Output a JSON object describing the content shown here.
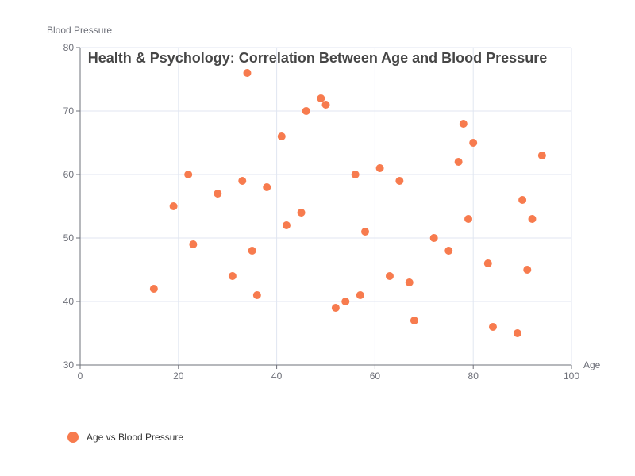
{
  "chart_data": {
    "type": "scatter",
    "title": "Health & Psychology: Correlation Between Age and Blood Pressure",
    "xlabel": "Age",
    "ylabel": "Blood Pressure",
    "xlim": [
      0,
      100
    ],
    "ylim": [
      30,
      80
    ],
    "xticks": [
      0,
      20,
      40,
      60,
      80,
      100
    ],
    "yticks": [
      30,
      40,
      50,
      60,
      70,
      80
    ],
    "grid": true,
    "legend_position": "bottom-left",
    "series": [
      {
        "name": "Age vs Blood Pressure",
        "color": "#f77b4e",
        "points": [
          [
            15,
            42
          ],
          [
            19,
            55
          ],
          [
            22,
            60
          ],
          [
            23,
            49
          ],
          [
            28,
            57
          ],
          [
            31,
            44
          ],
          [
            33,
            59
          ],
          [
            34,
            76
          ],
          [
            35,
            48
          ],
          [
            36,
            41
          ],
          [
            38,
            58
          ],
          [
            41,
            66
          ],
          [
            42,
            52
          ],
          [
            45,
            54
          ],
          [
            46,
            70
          ],
          [
            49,
            72
          ],
          [
            50,
            71
          ],
          [
            52,
            39
          ],
          [
            54,
            40
          ],
          [
            56,
            60
          ],
          [
            57,
            41
          ],
          [
            58,
            51
          ],
          [
            61,
            61
          ],
          [
            63,
            44
          ],
          [
            65,
            59
          ],
          [
            67,
            43
          ],
          [
            68,
            37
          ],
          [
            72,
            50
          ],
          [
            75,
            48
          ],
          [
            77,
            62
          ],
          [
            78,
            68
          ],
          [
            79,
            53
          ],
          [
            80,
            65
          ],
          [
            83,
            46
          ],
          [
            84,
            36
          ],
          [
            89,
            35
          ],
          [
            90,
            56
          ],
          [
            91,
            45
          ],
          [
            92,
            53
          ],
          [
            94,
            63
          ]
        ]
      }
    ]
  }
}
